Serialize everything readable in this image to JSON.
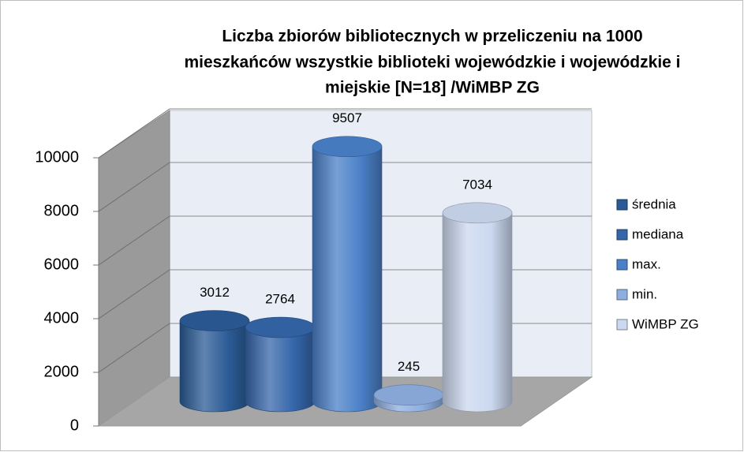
{
  "chart_data": {
    "type": "bar",
    "title": [
      "Liczba zbiorów bibliotecznych w przeliczeniu na 1000",
      "mieszkańców wszystkie biblioteki wojewódzkie i wojewódzkie i",
      "miejskie  [N=18] /WiMBP  ZG"
    ],
    "categories": [
      null
    ],
    "series": [
      {
        "name": "średnia",
        "color": "#2b5b96",
        "values": [
          3012
        ]
      },
      {
        "name": "mediana",
        "color": "#3566aa",
        "values": [
          2764
        ]
      },
      {
        "name": "max.",
        "color": "#4a80c8",
        "values": [
          9507
        ]
      },
      {
        "name": "min.",
        "color": "#8eaee0",
        "values": [
          245
        ]
      },
      {
        "name": "WiMBP ZG",
        "color": "#cbd8ef",
        "values": [
          7034
        ]
      }
    ],
    "ylim": [
      0,
      10000
    ],
    "yticks": [
      0,
      2000,
      4000,
      6000,
      8000,
      10000
    ],
    "grid": true,
    "legend": "right"
  }
}
